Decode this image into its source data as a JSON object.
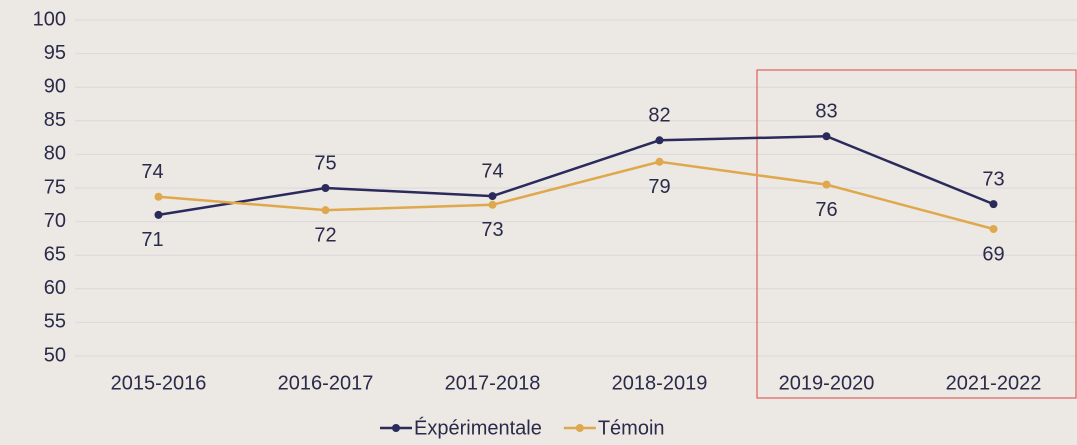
{
  "chart_data": {
    "type": "line",
    "categories": [
      "2015-2016",
      "2016-2017",
      "2017-2018",
      "2018-2019",
      "2019-2020",
      "2021-2022"
    ],
    "series": [
      {
        "name": "Éxpérimentale",
        "color": "#2b2a5c",
        "values": [
          71.0,
          75.0,
          73.8,
          82.1,
          82.7,
          72.6
        ],
        "value_labels": [
          "71",
          "75",
          "74",
          "82",
          "83",
          "73"
        ]
      },
      {
        "name": "Témoin",
        "color": "#e0a84c",
        "values": [
          73.7,
          71.7,
          72.5,
          78.9,
          75.5,
          68.9
        ],
        "value_labels": [
          "74",
          "72",
          "73",
          "79",
          "76",
          "69"
        ]
      }
    ],
    "ylim": [
      50,
      100
    ],
    "yticks": [
      50,
      55,
      60,
      65,
      70,
      75,
      80,
      85,
      90,
      95,
      100
    ],
    "grid": true,
    "legend": "bottom"
  }
}
